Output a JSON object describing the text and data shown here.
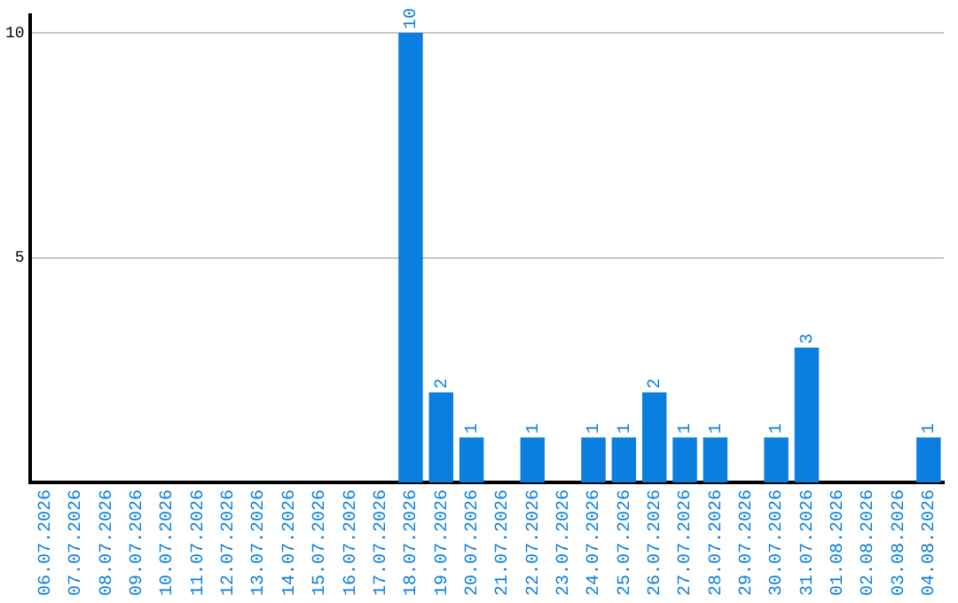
{
  "chart_data": {
    "type": "bar",
    "categories": [
      "06.07.2026",
      "07.07.2026",
      "08.07.2026",
      "09.07.2026",
      "10.07.2026",
      "11.07.2026",
      "12.07.2026",
      "13.07.2026",
      "14.07.2026",
      "15.07.2026",
      "16.07.2026",
      "17.07.2026",
      "18.07.2026",
      "19.07.2026",
      "20.07.2026",
      "21.07.2026",
      "22.07.2026",
      "23.07.2026",
      "24.07.2026",
      "25.07.2026",
      "26.07.2026",
      "27.07.2026",
      "28.07.2026",
      "29.07.2026",
      "30.07.2026",
      "31.07.2026",
      "01.08.2026",
      "02.08.2026",
      "03.08.2026",
      "04.08.2026"
    ],
    "values": [
      0,
      0,
      0,
      0,
      0,
      0,
      0,
      0,
      0,
      0,
      0,
      0,
      10,
      2,
      1,
      0,
      1,
      0,
      1,
      1,
      2,
      1,
      1,
      0,
      1,
      3,
      0,
      0,
      0,
      1
    ],
    "value_labels": [
      null,
      null,
      null,
      null,
      null,
      null,
      null,
      null,
      null,
      null,
      null,
      null,
      "10",
      "2",
      "1",
      null,
      "1",
      null,
      "1",
      "1",
      "2",
      "1",
      "1",
      null,
      "1",
      "3",
      null,
      null,
      null,
      "1"
    ],
    "color": "#0a7fe0",
    "ylim": [
      0,
      10.4
    ],
    "yticks": [
      5,
      10
    ],
    "grid": "y",
    "legend": false
  }
}
